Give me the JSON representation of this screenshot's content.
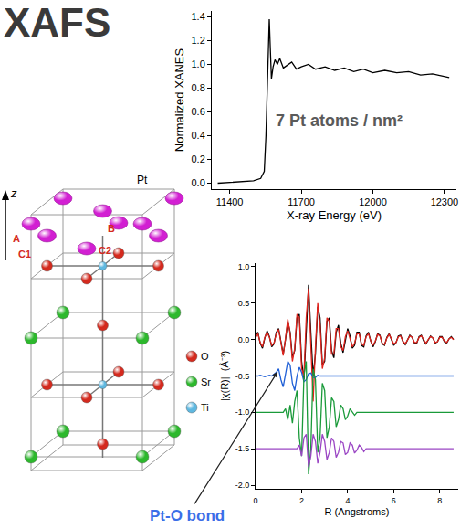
{
  "title": "XAFS",
  "structure": {
    "axis_label": "z",
    "atom_label": "Pt",
    "pt_color": "#d21fd2",
    "sites": [
      "A",
      "B",
      "C1",
      "C2"
    ],
    "legend": [
      {
        "label": "O",
        "color": "#d42a1e"
      },
      {
        "label": "Sr",
        "color": "#2db82d"
      },
      {
        "label": "Ti",
        "color": "#5fb8e0"
      }
    ]
  },
  "chart_data": [
    {
      "type": "line",
      "xlabel": "X-ray Energy (eV)",
      "ylabel": "Normalized XANES",
      "grid": false,
      "x": [
        11350,
        11400,
        11450,
        11500,
        11530,
        11545,
        11552,
        11558,
        11563,
        11566,
        11570,
        11575,
        11582,
        11590,
        11600,
        11610,
        11625,
        11640,
        11660,
        11680,
        11700,
        11730,
        11760,
        11800,
        11840,
        11880,
        11920,
        11960,
        12000,
        12050,
        12100,
        12150,
        12200,
        12250,
        12300,
        12320
      ],
      "series": [
        {
          "color": "#000000",
          "values": [
            0.0,
            0.005,
            0.01,
            0.02,
            0.04,
            0.1,
            0.4,
            0.9,
            1.25,
            1.38,
            1.15,
            0.88,
            0.98,
            1.04,
            1.0,
            1.05,
            0.97,
            0.99,
            1.02,
            0.96,
            0.98,
            1.0,
            0.96,
            0.98,
            0.95,
            0.97,
            0.94,
            0.96,
            0.93,
            0.95,
            0.93,
            0.94,
            0.91,
            0.92,
            0.9,
            0.89
          ]
        }
      ],
      "xlim": [
        11325,
        12350
      ],
      "xticks": [
        11400,
        11700,
        12000,
        12300
      ],
      "ylim": [
        -0.05,
        1.45
      ],
      "yticks": [
        {
          "value": 0,
          "label": "0.0"
        },
        0.2,
        0.4,
        0.6,
        0.8,
        {
          "value": 1,
          "label": "1.0"
        },
        1.2,
        1.4
      ],
      "annotations": [
        {
          "text": "7 Pt atoms / nm²",
          "x": 11860,
          "y": 0.53
        }
      ]
    },
    {
      "type": "line",
      "xlabel": "R (Angstroms)",
      "ylabel": "|χ(R)|  (Å⁻³)",
      "grid": false,
      "x": [
        0,
        0.1,
        0.2,
        0.3,
        0.4,
        0.5,
        0.6,
        0.7,
        0.8,
        0.9,
        1.0,
        1.1,
        1.2,
        1.3,
        1.4,
        1.5,
        1.6,
        1.7,
        1.8,
        1.9,
        2.0,
        2.1,
        2.2,
        2.3,
        2.4,
        2.5,
        2.6,
        2.7,
        2.8,
        2.9,
        3.0,
        3.1,
        3.2,
        3.3,
        3.4,
        3.5,
        3.6,
        3.7,
        3.8,
        3.9,
        4.0,
        4.1,
        4.2,
        4.3,
        4.4,
        4.5,
        4.6,
        4.7,
        4.8,
        4.9,
        5.0,
        5.1,
        5.2,
        5.3,
        5.4,
        5.5,
        5.6,
        5.7,
        5.8,
        5.9,
        6.0,
        6.1,
        6.2,
        6.3,
        6.4,
        6.5,
        6.6,
        6.7,
        6.8,
        6.9,
        7.0,
        7.1,
        7.2,
        7.3,
        7.4,
        7.5,
        7.6,
        7.7,
        7.8,
        7.9,
        8.0,
        8.1,
        8.2,
        8.3,
        8.4,
        8.5,
        8.6
      ],
      "series": [
        {
          "color": "#000000",
          "values": [
            0.05,
            0.1,
            -0.05,
            -0.12,
            0.02,
            0.12,
            0.04,
            -0.1,
            -0.06,
            0.1,
            0.15,
            -0.05,
            -0.2,
            0.0,
            0.25,
            0.1,
            -0.25,
            -0.15,
            0.3,
            0.35,
            -0.3,
            -0.55,
            0.2,
            0.75,
            0.1,
            -0.5,
            -0.2,
            0.45,
            0.3,
            -0.35,
            -0.3,
            0.25,
            0.3,
            -0.15,
            -0.25,
            0.1,
            0.2,
            -0.05,
            -0.18,
            0.0,
            0.15,
            0.05,
            -0.12,
            -0.08,
            0.1,
            0.1,
            -0.08,
            -0.1,
            0.05,
            0.1,
            -0.02,
            -0.1,
            -0.03,
            0.08,
            0.06,
            -0.06,
            -0.08,
            0.03,
            0.08,
            0.0,
            -0.08,
            -0.04,
            0.05,
            0.06,
            -0.03,
            -0.07,
            0.0,
            0.06,
            0.03,
            -0.05,
            -0.05,
            0.04,
            0.06,
            -0.02,
            -0.06,
            0.0,
            0.05,
            0.02,
            -0.05,
            -0.03,
            0.04,
            0.04,
            -0.03,
            -0.05,
            0.01,
            0.04,
            0.0
          ]
        },
        {
          "color": "#e0231c",
          "values": [
            0.02,
            0.08,
            -0.04,
            -0.1,
            0.03,
            0.1,
            0.03,
            -0.08,
            -0.05,
            0.08,
            0.14,
            -0.06,
            -0.22,
            0.02,
            0.28,
            0.08,
            -0.3,
            -0.12,
            0.35,
            0.3,
            -0.4,
            -0.5,
            0.3,
            0.7,
            0.0,
            -0.85,
            -0.1,
            0.5,
            0.2,
            -0.4,
            -0.25,
            0.3,
            0.25,
            -0.2,
            -0.2,
            0.15,
            0.15,
            -0.1,
            -0.15,
            0.04,
            0.12,
            0.02,
            -0.1,
            -0.05,
            0.08,
            0.08,
            -0.06,
            -0.08,
            0.04,
            0.08,
            -0.02,
            -0.08,
            -0.02,
            0.07,
            0.05,
            -0.05,
            -0.07,
            0.02,
            0.07,
            0.01,
            -0.06,
            -0.04,
            0.04,
            0.05,
            -0.02,
            -0.06,
            0.0,
            0.05,
            0.03,
            -0.04,
            -0.04,
            0.03,
            0.05,
            -0.01,
            -0.05,
            0.0,
            0.04,
            0.02,
            -0.04,
            -0.03,
            0.03,
            0.03,
            -0.02,
            -0.04,
            0.01,
            0.03,
            0.0
          ]
        },
        {
          "color": "#1f5fd6",
          "values": [
            -0.5,
            -0.5,
            -0.49,
            -0.5,
            -0.51,
            -0.5,
            -0.49,
            -0.5,
            -0.48,
            -0.45,
            -0.4,
            -0.55,
            -0.65,
            -0.45,
            -0.3,
            -0.35,
            -0.6,
            -0.7,
            -0.5,
            -0.38,
            -0.45,
            -0.58,
            -0.55,
            -0.47,
            -0.46,
            -0.52,
            -0.52,
            -0.49,
            -0.5,
            -0.5,
            -0.5,
            -0.5,
            -0.5,
            -0.5,
            -0.5,
            -0.5,
            -0.5,
            -0.5,
            -0.5,
            -0.5,
            -0.5,
            -0.5,
            -0.5,
            -0.5,
            -0.5,
            -0.5,
            -0.5,
            -0.5,
            -0.5,
            -0.5,
            -0.5,
            -0.5,
            -0.5,
            -0.5,
            -0.5,
            -0.5,
            -0.5,
            -0.5,
            -0.5,
            -0.5,
            -0.5,
            -0.5,
            -0.5,
            -0.5,
            -0.5,
            -0.5,
            -0.5,
            -0.5,
            -0.5,
            -0.5,
            -0.5,
            -0.5,
            -0.5,
            -0.5,
            -0.5,
            -0.5,
            -0.5,
            -0.5,
            -0.5,
            -0.5,
            -0.5,
            -0.5,
            -0.5,
            -0.5,
            -0.5,
            -0.5,
            -0.5
          ]
        },
        {
          "color": "#1a9a3a",
          "values": [
            -1.0,
            -1.0,
            -1.0,
            -1.0,
            -1.0,
            -1.0,
            -1.0,
            -1.0,
            -1.0,
            -1.0,
            -1.0,
            -1.0,
            -1.0,
            -0.95,
            -1.1,
            -0.9,
            -1.15,
            -0.85,
            -0.7,
            -1.35,
            -1.6,
            -0.5,
            -0.3,
            -1.85,
            -1.5,
            -0.4,
            -0.55,
            -1.55,
            -1.35,
            -0.6,
            -0.7,
            -1.35,
            -1.2,
            -0.8,
            -0.85,
            -1.2,
            -1.1,
            -0.9,
            -0.95,
            -1.1,
            -1.05,
            -0.95,
            -1.0,
            -1.04,
            -1.0,
            -1.0,
            -1.0,
            -1.0,
            -1.0,
            -1.0,
            -1.0,
            -1.0,
            -1.0,
            -1.0,
            -1.0,
            -1.0,
            -1.0,
            -1.0,
            -1.0,
            -1.0,
            -1.0,
            -1.0,
            -1.0,
            -1.0,
            -1.0,
            -1.0,
            -1.0,
            -1.0,
            -1.0,
            -1.0,
            -1.0,
            -1.0,
            -1.0,
            -1.0,
            -1.0,
            -1.0,
            -1.0,
            -1.0,
            -1.0,
            -1.0,
            -1.0,
            -1.0,
            -1.0,
            -1.0,
            -1.0,
            -1.0,
            -1.0
          ]
        },
        {
          "color": "#9a45c4",
          "values": [
            -1.5,
            -1.5,
            -1.5,
            -1.5,
            -1.5,
            -1.5,
            -1.5,
            -1.5,
            -1.5,
            -1.5,
            -1.5,
            -1.5,
            -1.5,
            -1.5,
            -1.5,
            -1.5,
            -1.5,
            -1.5,
            -1.5,
            -1.45,
            -1.6,
            -1.35,
            -1.3,
            -1.75,
            -1.6,
            -1.3,
            -1.4,
            -1.7,
            -1.55,
            -1.3,
            -1.4,
            -1.65,
            -1.55,
            -1.35,
            -1.4,
            -1.62,
            -1.55,
            -1.4,
            -1.42,
            -1.58,
            -1.55,
            -1.42,
            -1.45,
            -1.56,
            -1.52,
            -1.45,
            -1.48,
            -1.54,
            -1.5,
            -1.5,
            -1.5,
            -1.5,
            -1.5,
            -1.5,
            -1.5,
            -1.5,
            -1.5,
            -1.5,
            -1.5,
            -1.5,
            -1.5,
            -1.5,
            -1.5,
            -1.5,
            -1.5,
            -1.5,
            -1.5,
            -1.5,
            -1.5,
            -1.5,
            -1.5,
            -1.5,
            -1.5,
            -1.5,
            -1.5,
            -1.5,
            -1.5,
            -1.5,
            -1.5,
            -1.5,
            -1.5,
            -1.5,
            -1.5,
            -1.5,
            -1.5,
            -1.5,
            -1.5
          ]
        }
      ],
      "xlim": [
        0,
        8.8
      ],
      "xticks": [
        0,
        2,
        4,
        6,
        8
      ],
      "ylim": [
        -2.05,
        1.05
      ],
      "yticks": [
        {
          "value": -2,
          "label": "-2.0"
        },
        -1.5,
        {
          "value": -1,
          "label": "-1.0"
        },
        -0.5,
        {
          "value": 0,
          "label": "0.0"
        },
        0.5,
        {
          "value": 1,
          "label": "1.0"
        }
      ],
      "annotations": [
        {
          "text": "Pt-O bond",
          "x": 1.0,
          "y": -0.42
        }
      ]
    }
  ]
}
